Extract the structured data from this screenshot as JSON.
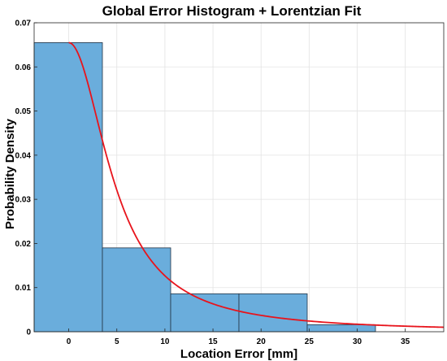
{
  "chart_data": {
    "type": "bar",
    "title": "Global Error Histogram + Lorentzian Fit",
    "xlabel": "Location Error [mm]",
    "ylabel": "Probability Density",
    "xlim": [
      -3.6,
      39
    ],
    "ylim": [
      0,
      0.07
    ],
    "xticks": [
      0,
      5,
      10,
      15,
      20,
      25,
      30,
      35
    ],
    "yticks": [
      0,
      0.01,
      0.02,
      0.03,
      0.04,
      0.05,
      0.06,
      0.07
    ],
    "ytick_labels": [
      "0",
      "0.01",
      "0.02",
      "0.03",
      "0.04",
      "0.05",
      "0.06",
      "0.07"
    ],
    "grid": true,
    "histogram": {
      "name": "Global Error Histogram",
      "bin_edges": [
        -3.6,
        3.5,
        10.6,
        17.7,
        24.8,
        31.9
      ],
      "values": [
        0.0655,
        0.019,
        0.0086,
        0.0086,
        0.0016
      ],
      "color": "#6aaddc",
      "edge_color": "#223344"
    },
    "fit": {
      "name": "Lorentzian Fit",
      "type": "lorentzian",
      "x0": 0,
      "gamma": 4.9,
      "peak": 0.0655,
      "x_range": [
        0,
        39
      ],
      "color": "#e8141c"
    }
  }
}
